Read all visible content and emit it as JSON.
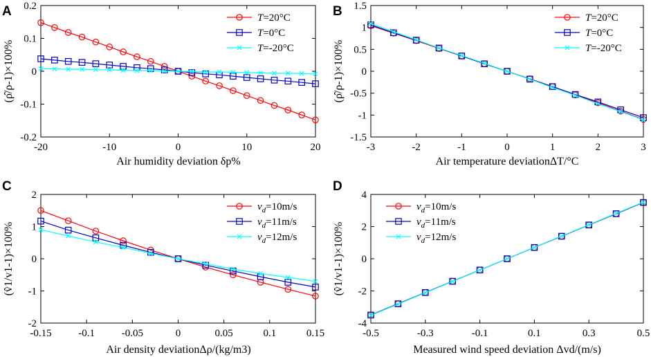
{
  "figure": {
    "colors": {
      "red": "#ff0000",
      "blue": "#0000cc",
      "cyan": "#00ffff",
      "frame": "#000000"
    }
  },
  "chart_data": [
    {
      "panel": "A",
      "type": "line",
      "xlabel": "Air humidity deviation δp%",
      "ylabel": "(ρ̂/ρ-1)×100%",
      "xlim": [
        -20,
        20
      ],
      "ylim": [
        -0.2,
        0.2
      ],
      "xticks": [
        -20,
        -10,
        0,
        10,
        20
      ],
      "xtick_labels": [
        "-20",
        "-10",
        "0",
        "10",
        "20"
      ],
      "yticks": [
        -0.2,
        -0.1,
        0,
        0.1,
        0.2
      ],
      "ytick_labels": [
        "-0.2",
        "-0.1",
        "0",
        "0.1",
        "0.2"
      ],
      "legend_position": "top-right",
      "x": [
        -20,
        -18,
        -16,
        -14,
        -12,
        -10,
        -8,
        -6,
        -4,
        -2,
        0,
        2,
        4,
        6,
        8,
        10,
        12,
        14,
        16,
        18,
        20
      ],
      "series": [
        {
          "name": "T=20°C",
          "var": "T",
          "rest": "=20°C",
          "color": "red",
          "marker": "circle",
          "values": [
            0.148,
            0.133,
            0.118,
            0.104,
            0.089,
            0.074,
            0.059,
            0.044,
            0.03,
            0.015,
            0,
            -0.015,
            -0.03,
            -0.044,
            -0.059,
            -0.074,
            -0.089,
            -0.104,
            -0.118,
            -0.133,
            -0.148
          ]
        },
        {
          "name": "T=0°C",
          "var": "T",
          "rest": "=0°C",
          "color": "blue",
          "marker": "square",
          "values": [
            0.038,
            0.034,
            0.03,
            0.027,
            0.023,
            0.019,
            0.015,
            0.011,
            0.008,
            0.004,
            0,
            -0.004,
            -0.008,
            -0.011,
            -0.015,
            -0.019,
            -0.023,
            -0.027,
            -0.03,
            -0.034,
            -0.038
          ]
        },
        {
          "name": "T=-20°C",
          "var": "T",
          "rest": "=-20°C",
          "color": "cyan",
          "marker": "x",
          "values": [
            0.008,
            0.007,
            0.006,
            0.006,
            0.005,
            0.004,
            0.003,
            0.002,
            0.002,
            0.001,
            0,
            -0.001,
            -0.002,
            -0.002,
            -0.003,
            -0.004,
            -0.005,
            -0.006,
            -0.006,
            -0.007,
            -0.008
          ]
        }
      ]
    },
    {
      "panel": "B",
      "type": "line",
      "xlabel": "Air temperature deviationΔT/°C",
      "ylabel": "(ρ̂/ρ-1)×100%",
      "xlim": [
        -3,
        3
      ],
      "ylim": [
        -1.5,
        1.5
      ],
      "xticks": [
        -3,
        -2,
        -1,
        0,
        1,
        2,
        3
      ],
      "xtick_labels": [
        "-3",
        "-2",
        "-1",
        "0",
        "1",
        "2",
        "3"
      ],
      "yticks": [
        -1.5,
        -1,
        -0.5,
        0,
        0.5,
        1,
        1.5
      ],
      "ytick_labels": [
        "-1.5",
        "-1",
        "-0.5",
        "0",
        "0.5",
        "1",
        "1.5"
      ],
      "legend_position": "top-right",
      "x": [
        -3,
        -2.5,
        -2,
        -1.5,
        -1,
        -0.5,
        0,
        0.5,
        1,
        1.5,
        2,
        2.5,
        3
      ],
      "series": [
        {
          "name": "T=20°C",
          "var": "T",
          "rest": "=20°C",
          "color": "red",
          "marker": "circle",
          "values": [
            1.04,
            0.87,
            0.7,
            0.52,
            0.35,
            0.17,
            0,
            -0.17,
            -0.35,
            -0.54,
            -0.72,
            -0.91,
            -1.1
          ]
        },
        {
          "name": "T=0°C",
          "var": "T",
          "rest": "=0°C",
          "color": "blue",
          "marker": "square",
          "values": [
            1.06,
            0.88,
            0.71,
            0.53,
            0.35,
            0.17,
            0,
            -0.18,
            -0.35,
            -0.53,
            -0.7,
            -0.88,
            -1.06
          ]
        },
        {
          "name": "T=-20°C",
          "var": "T",
          "rest": "=-20°C",
          "color": "cyan",
          "marker": "x",
          "values": [
            1.09,
            0.9,
            0.72,
            0.53,
            0.36,
            0.18,
            0,
            -0.18,
            -0.37,
            -0.55,
            -0.74,
            -0.92,
            -1.11
          ]
        }
      ]
    },
    {
      "panel": "C",
      "type": "line",
      "xlabel": "Air density deviationΔρ/(kg/m3)",
      "ylabel": "(v̂1/v1-1)×100%",
      "xlim": [
        -0.15,
        0.15
      ],
      "ylim": [
        -2,
        2
      ],
      "xticks": [
        -0.15,
        -0.1,
        -0.05,
        0,
        0.05,
        0.1,
        0.15
      ],
      "xtick_labels": [
        "-0.15",
        "-0.1",
        "-0.05",
        "0",
        "0.05",
        "0.1",
        "0.15"
      ],
      "yticks": [
        -2,
        -1,
        0,
        1,
        2
      ],
      "ytick_labels": [
        "-2",
        "-1",
        "0",
        "1",
        "2"
      ],
      "legend_position": "top-right",
      "x": [
        -0.15,
        -0.12,
        -0.09,
        -0.06,
        -0.03,
        0,
        0.03,
        0.06,
        0.09,
        0.12,
        0.15
      ],
      "series": [
        {
          "name": "vd=10m/s",
          "var": "v",
          "sub": "d",
          "rest": "=10m/s",
          "color": "red",
          "marker": "circle",
          "values": [
            1.5,
            1.18,
            0.86,
            0.56,
            0.27,
            0,
            -0.26,
            -0.5,
            -0.73,
            -0.95,
            -1.16
          ]
        },
        {
          "name": "vd=11m/s",
          "var": "v",
          "sub": "d",
          "rest": "=11m/s",
          "color": "blue",
          "marker": "square",
          "values": [
            1.17,
            0.89,
            0.65,
            0.42,
            0.2,
            0,
            -0.2,
            -0.38,
            -0.56,
            -0.73,
            -0.88
          ]
        },
        {
          "name": "vd=12m/s",
          "var": "v",
          "sub": "d",
          "rest": "=12m/s",
          "color": "cyan",
          "marker": "x",
          "values": [
            0.9,
            0.71,
            0.52,
            0.35,
            0.17,
            0,
            -0.16,
            -0.32,
            -0.46,
            -0.58,
            -0.7
          ]
        }
      ]
    },
    {
      "panel": "D",
      "type": "line",
      "xlabel": "Measured wind speed deviation Δvd/(m/s)",
      "ylabel": "(v̂1/v1-1)×100%",
      "xlim": [
        -0.5,
        0.5
      ],
      "ylim": [
        -4,
        4
      ],
      "xticks": [
        -0.5,
        -0.3,
        -0.1,
        0.1,
        0.3,
        0.5
      ],
      "xtick_labels": [
        "-0.5",
        "-0.3",
        "-0.1",
        "0.1",
        "0.3",
        "0.5"
      ],
      "yticks": [
        -4,
        -2,
        0,
        2,
        4
      ],
      "ytick_labels": [
        "-4",
        "-2",
        "0",
        "2",
        "4"
      ],
      "legend_position": "top-left",
      "x": [
        -0.5,
        -0.4,
        -0.3,
        -0.2,
        -0.1,
        0,
        0.1,
        0.2,
        0.3,
        0.4,
        0.5
      ],
      "series": [
        {
          "name": "vd=10m/s",
          "var": "v",
          "sub": "d",
          "rest": "=10m/s",
          "color": "red",
          "marker": "circle",
          "values": [
            -3.5,
            -2.8,
            -2.1,
            -1.4,
            -0.7,
            0,
            0.7,
            1.4,
            2.1,
            2.8,
            3.5
          ]
        },
        {
          "name": "vd=11m/s",
          "var": "v",
          "sub": "d",
          "rest": "=11m/s",
          "color": "blue",
          "marker": "square",
          "values": [
            -3.5,
            -2.8,
            -2.1,
            -1.4,
            -0.7,
            0,
            0.7,
            1.4,
            2.1,
            2.8,
            3.5
          ]
        },
        {
          "name": "vd=12m/s",
          "var": "v",
          "sub": "d",
          "rest": "=12m/s",
          "color": "cyan",
          "marker": "x",
          "values": [
            -3.52,
            -2.82,
            -2.11,
            -1.41,
            -0.7,
            0,
            0.7,
            1.41,
            2.11,
            2.82,
            3.52
          ]
        }
      ]
    }
  ]
}
